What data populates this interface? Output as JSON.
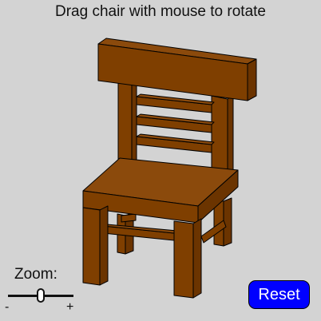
{
  "instruction": "Drag chair with mouse to rotate",
  "zoom": {
    "label": "Zoom:",
    "min_label": "-",
    "max_label": "+",
    "value_fraction": 0.5
  },
  "reset_button": {
    "label": "Reset"
  },
  "colors": {
    "background": "#d3d3d3",
    "wood_front": "#7f3f00",
    "wood_side": "#6b3400",
    "wood_top": "#8b4a0c",
    "outline": "#000000",
    "button_bg": "#0000ff",
    "button_text": "#ffffff"
  }
}
